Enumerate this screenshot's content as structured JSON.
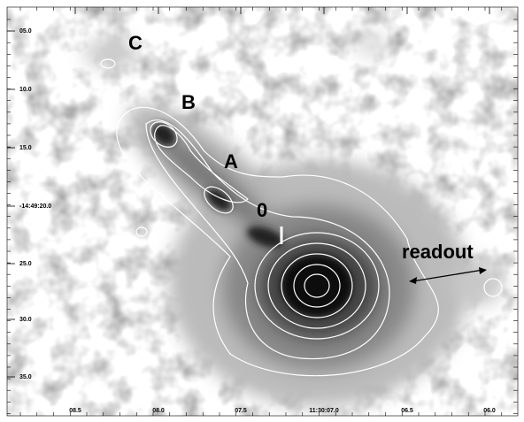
{
  "labels": [
    "C",
    "B",
    "A",
    "0",
    "readout"
  ],
  "y_axis": {
    "ticks": [
      "05.0",
      "10.0",
      "15.0",
      "-14:49:20.0",
      "25.0",
      "30.0",
      "35.0"
    ]
  },
  "x_axis": {
    "ticks": [
      "08.5",
      "08.0",
      "07.5",
      "11:30:07.0",
      "06.5",
      "06.0"
    ]
  }
}
